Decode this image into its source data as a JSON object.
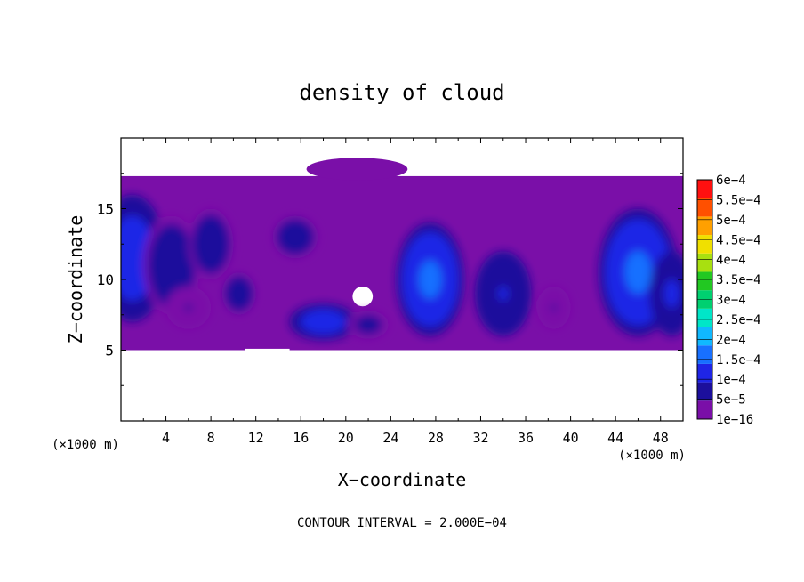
{
  "chart_data": {
    "type": "heatmap",
    "title": "density of cloud",
    "xlabel": "X−coordinate",
    "ylabel": "Z−coordinate",
    "x_unit": "(×1000 m)",
    "y_unit": "(×1000 m)",
    "footer": "CONTOUR INTERVAL = 2.000E−04",
    "xlim": [
      0,
      50
    ],
    "ylim": [
      0,
      20
    ],
    "x_ticks": [
      "4",
      "8",
      "12",
      "16",
      "20",
      "24",
      "28",
      "32",
      "36",
      "40",
      "44",
      "48"
    ],
    "y_ticks": [
      "5",
      "10",
      "15"
    ],
    "colorbar": {
      "levels": [
        "1e−16",
        "5e−5",
        "1e−4",
        "1.5e−4",
        "2e−4",
        "2.5e−4",
        "3e−4",
        "3.5e−4",
        "4e−4",
        "4.5e−4",
        "5e−4",
        "5.5e−4",
        "6e−4"
      ],
      "colors": [
        "#7a0fa8",
        "#1c0f9c",
        "#1f25e6",
        "#1870ff",
        "#10b8ff",
        "#00e6c8",
        "#00d070",
        "#22c822",
        "#a8e010",
        "#f0e000",
        "#ffa000",
        "#ff5000",
        "#ff1010",
        "#ff7878"
      ]
    },
    "cloud_layer_z": [
      5,
      17.3
    ],
    "blobs": [
      {
        "x": 1.0,
        "z": 11.5,
        "rx": 3.0,
        "rz": 4.5,
        "v": 0.00016
      },
      {
        "x": 4.5,
        "z": 11.0,
        "rx": 2.5,
        "rz": 3.5,
        "v": 0.00011
      },
      {
        "x": 8.0,
        "z": 12.5,
        "rx": 2.0,
        "rz": 2.5,
        "v": 0.0001
      },
      {
        "x": 6.0,
        "z": 8.0,
        "rx": 2.0,
        "rz": 1.5,
        "v": 6e-05
      },
      {
        "x": 10.5,
        "z": 9.0,
        "rx": 1.5,
        "rz": 1.5,
        "v": 0.0001
      },
      {
        "x": 15.5,
        "z": 13.0,
        "rx": 2.0,
        "rz": 1.5,
        "v": 0.00011
      },
      {
        "x": 18.0,
        "z": 7.0,
        "rx": 3.0,
        "rz": 1.3,
        "v": 0.00016
      },
      {
        "x": 22.0,
        "z": 6.8,
        "rx": 1.8,
        "rz": 1.0,
        "v": 9e-05
      },
      {
        "x": 27.5,
        "z": 10.0,
        "rx": 3.0,
        "rz": 4.0,
        "v": 0.00019
      },
      {
        "x": 34.0,
        "z": 9.0,
        "rx": 2.5,
        "rz": 3.0,
        "v": 0.00012
      },
      {
        "x": 38.5,
        "z": 8.0,
        "rx": 1.5,
        "rz": 1.5,
        "v": 6e-05
      },
      {
        "x": 46.0,
        "z": 10.5,
        "rx": 3.5,
        "rz": 4.5,
        "v": 0.0002
      },
      {
        "x": 49.0,
        "z": 9.0,
        "rx": 2.0,
        "rz": 3.0,
        "v": 0.00013
      }
    ]
  }
}
